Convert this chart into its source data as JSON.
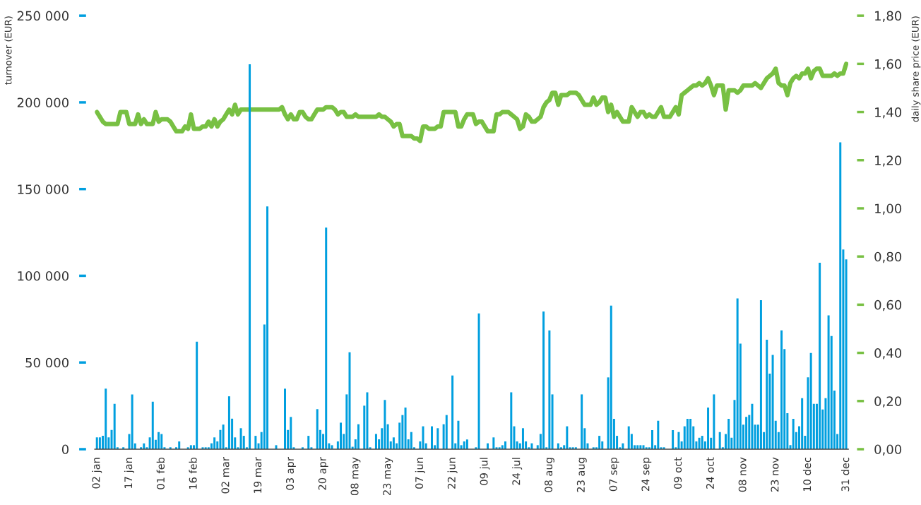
{
  "chart_data": {
    "type": "bar",
    "ylabel": "turnover (EUR)",
    "y2label": "daily share price (EUR)",
    "categories": [
      "02 jan",
      null,
      null,
      null,
      null,
      null,
      null,
      null,
      null,
      null,
      null,
      "17 jan",
      null,
      null,
      null,
      null,
      null,
      null,
      null,
      null,
      null,
      null,
      "01 feb",
      null,
      null,
      null,
      null,
      null,
      null,
      null,
      null,
      null,
      null,
      "16 feb",
      null,
      null,
      null,
      null,
      null,
      null,
      null,
      null,
      null,
      null,
      "02 mar",
      null,
      null,
      null,
      null,
      null,
      null,
      null,
      null,
      null,
      null,
      "19 mar",
      null,
      null,
      null,
      null,
      null,
      null,
      null,
      null,
      null,
      null,
      "03 apr",
      null,
      null,
      null,
      null,
      null,
      null,
      null,
      null,
      null,
      null,
      "20 apr",
      null,
      null,
      null,
      null,
      null,
      null,
      null,
      null,
      null,
      null,
      "08 may",
      null,
      null,
      null,
      null,
      null,
      null,
      null,
      null,
      null,
      null,
      "23 may",
      null,
      null,
      null,
      null,
      null,
      null,
      null,
      null,
      null,
      null,
      "07 jun",
      null,
      null,
      null,
      null,
      null,
      null,
      null,
      null,
      null,
      null,
      "22 jun",
      null,
      null,
      null,
      null,
      null,
      null,
      null,
      null,
      null,
      null,
      "09 jul",
      null,
      null,
      null,
      null,
      null,
      null,
      null,
      null,
      null,
      null,
      "24 jul",
      null,
      null,
      null,
      null,
      null,
      null,
      null,
      null,
      null,
      null,
      "08 aug",
      null,
      null,
      null,
      null,
      null,
      null,
      null,
      null,
      null,
      null,
      "23 aug",
      null,
      null,
      null,
      null,
      null,
      null,
      null,
      null,
      null,
      null,
      "07 sep",
      null,
      null,
      null,
      null,
      null,
      null,
      null,
      null,
      null,
      null,
      "24 sep",
      null,
      null,
      null,
      null,
      null,
      null,
      null,
      null,
      null,
      null,
      "09 oct",
      null,
      null,
      null,
      null,
      null,
      null,
      null,
      null,
      null,
      null,
      "24 oct",
      null,
      null,
      null,
      null,
      null,
      null,
      null,
      null,
      null,
      null,
      "08 nov",
      null,
      null,
      null,
      null,
      null,
      null,
      null,
      null,
      null,
      null,
      "23 nov",
      null,
      null,
      null,
      null,
      null,
      null,
      null,
      null,
      null,
      null,
      "10 dec",
      null,
      null,
      null,
      null,
      null,
      null,
      null,
      null,
      null,
      null,
      null,
      null,
      "31 dec"
    ],
    "series": [
      {
        "color": "#009fdf",
        "values": [
          6800,
          6800,
          7700,
          34900,
          6800,
          11100,
          26200,
          1100,
          0,
          1100,
          0,
          8800,
          31600,
          3400,
          0,
          1100,
          3400,
          1100,
          6800,
          27400,
          5400,
          9900,
          8800,
          1100,
          0,
          1100,
          0,
          1100,
          4500,
          0,
          0,
          1100,
          2300,
          2300,
          62000,
          0,
          1100,
          1100,
          1100,
          3400,
          6800,
          4500,
          11100,
          14200,
          1100,
          30500,
          17600,
          6800,
          1100,
          12100,
          7700,
          1100,
          222000,
          0,
          7700,
          3400,
          9900,
          71900,
          140000,
          0,
          0,
          2300,
          0,
          0,
          34900,
          11100,
          18600,
          1100,
          0,
          0,
          1100,
          0,
          7700,
          1100,
          0,
          23100,
          11100,
          8800,
          127800,
          3400,
          2300,
          0,
          4500,
          15300,
          8800,
          31600,
          55900,
          1400,
          5700,
          14400,
          0,
          25100,
          32800,
          1100,
          0,
          8800,
          5700,
          12100,
          28400,
          14400,
          4500,
          6800,
          3400,
          15300,
          19700,
          24000,
          5700,
          9900,
          1100,
          0,
          4500,
          13200,
          3400,
          0,
          13200,
          2300,
          12100,
          0,
          14400,
          19700,
          0,
          42500,
          3400,
          16400,
          2300,
          4500,
          5600,
          0,
          0,
          1100,
          78300,
          0,
          0,
          3400,
          0,
          6800,
          1100,
          1100,
          2300,
          4500,
          0,
          32800,
          13200,
          4500,
          3400,
          12100,
          4500,
          1100,
          3400,
          0,
          2300,
          8800,
          79400,
          1100,
          68500,
          31600,
          0,
          3400,
          1100,
          2300,
          13200,
          1100,
          1100,
          1100,
          0,
          31600,
          12100,
          3400,
          0,
          1100,
          1100,
          7700,
          4500,
          0,
          41400,
          82800,
          17500,
          7700,
          1100,
          3400,
          0,
          13200,
          8800,
          2300,
          2300,
          2300,
          2300,
          1100,
          1100,
          11000,
          2300,
          16400,
          1100,
          1100,
          0,
          0,
          11000,
          1100,
          9900,
          4500,
          13200,
          17500,
          17500,
          13200,
          4500,
          6600,
          7700,
          4500,
          24000,
          6600,
          31600,
          0,
          9900,
          1100,
          8800,
          17500,
          6600,
          28400,
          87000,
          60900,
          14200,
          18600,
          19700,
          26200,
          14200,
          14200,
          85900,
          9900,
          63100,
          43600,
          54400,
          16400,
          9900,
          68500,
          57700,
          20800,
          2300,
          17500,
          9900,
          13200,
          29400,
          7700,
          41400,
          55500,
          26200,
          26200,
          107500,
          22900,
          29400,
          77200,
          65300,
          33800,
          8800,
          177000,
          115200,
          109500
        ]
      },
      {
        "type": "line",
        "axis": "y2",
        "color": "#78c043",
        "values": [
          1.4,
          1.38,
          1.36,
          1.35,
          1.35,
          1.35,
          1.35,
          1.35,
          1.4,
          1.4,
          1.4,
          1.35,
          1.35,
          1.35,
          1.39,
          1.35,
          1.37,
          1.35,
          1.35,
          1.35,
          1.4,
          1.36,
          1.37,
          1.37,
          1.37,
          1.36,
          1.34,
          1.32,
          1.32,
          1.32,
          1.34,
          1.33,
          1.39,
          1.33,
          1.33,
          1.33,
          1.34,
          1.34,
          1.36,
          1.34,
          1.37,
          1.34,
          1.36,
          1.37,
          1.39,
          1.41,
          1.39,
          1.43,
          1.39,
          1.41,
          1.41,
          1.41,
          1.41,
          1.41,
          1.41,
          1.41,
          1.41,
          1.41,
          1.41,
          1.41,
          1.41,
          1.41,
          1.41,
          1.42,
          1.39,
          1.37,
          1.39,
          1.37,
          1.37,
          1.4,
          1.4,
          1.38,
          1.37,
          1.37,
          1.39,
          1.41,
          1.41,
          1.41,
          1.42,
          1.42,
          1.42,
          1.41,
          1.39,
          1.4,
          1.4,
          1.38,
          1.38,
          1.38,
          1.39,
          1.38,
          1.38,
          1.38,
          1.38,
          1.38,
          1.38,
          1.38,
          1.39,
          1.38,
          1.38,
          1.37,
          1.36,
          1.34,
          1.35,
          1.35,
          1.3,
          1.3,
          1.3,
          1.3,
          1.29,
          1.29,
          1.28,
          1.34,
          1.34,
          1.33,
          1.33,
          1.33,
          1.34,
          1.34,
          1.4,
          1.4,
          1.4,
          1.4,
          1.4,
          1.34,
          1.34,
          1.37,
          1.39,
          1.39,
          1.39,
          1.35,
          1.36,
          1.36,
          1.34,
          1.32,
          1.32,
          1.32,
          1.39,
          1.39,
          1.4,
          1.4,
          1.4,
          1.39,
          1.38,
          1.37,
          1.33,
          1.34,
          1.39,
          1.38,
          1.36,
          1.36,
          1.37,
          1.38,
          1.42,
          1.44,
          1.45,
          1.48,
          1.48,
          1.43,
          1.47,
          1.47,
          1.47,
          1.48,
          1.48,
          1.48,
          1.47,
          1.45,
          1.43,
          1.43,
          1.43,
          1.46,
          1.43,
          1.44,
          1.46,
          1.46,
          1.4,
          1.43,
          1.38,
          1.4,
          1.38,
          1.36,
          1.36,
          1.36,
          1.42,
          1.4,
          1.38,
          1.4,
          1.4,
          1.38,
          1.39,
          1.38,
          1.38,
          1.4,
          1.42,
          1.38,
          1.38,
          1.38,
          1.4,
          1.42,
          1.39,
          1.47,
          1.48,
          1.49,
          1.5,
          1.51,
          1.51,
          1.52,
          1.51,
          1.52,
          1.54,
          1.51,
          1.47,
          1.51,
          1.51,
          1.51,
          1.41,
          1.49,
          1.49,
          1.49,
          1.48,
          1.49,
          1.51,
          1.51,
          1.51,
          1.51,
          1.52,
          1.51,
          1.5,
          1.52,
          1.54,
          1.55,
          1.56,
          1.58,
          1.52,
          1.51,
          1.51,
          1.47,
          1.52,
          1.54,
          1.55,
          1.54,
          1.56,
          1.56,
          1.58,
          1.54,
          1.57,
          1.58,
          1.58,
          1.55,
          1.55,
          1.55,
          1.55,
          1.56,
          1.55,
          1.56,
          1.56,
          1.6
        ]
      }
    ],
    "ylim": [
      0,
      250000
    ],
    "yticks": [
      0,
      {
        "value": 50000,
        "label": "50 000"
      },
      {
        "value": 100000,
        "label": "100 000"
      },
      {
        "value": 150000,
        "label": "150 000"
      },
      {
        "value": 200000,
        "label": "200 000"
      },
      {
        "value": 250000,
        "label": "250 000"
      }
    ],
    "y2lim": [
      0,
      1.8
    ],
    "y2ticks": [
      {
        "value": 0,
        "label": "0,00"
      },
      {
        "value": 0.2,
        "label": "0,20"
      },
      {
        "value": 0.4,
        "label": "0,40"
      },
      {
        "value": 0.6,
        "label": "0,60"
      },
      {
        "value": 0.8,
        "label": "0,80"
      },
      {
        "value": 1.0,
        "label": "1,00"
      },
      {
        "value": 1.2,
        "label": "1,20"
      },
      {
        "value": 1.4,
        "label": "1,40"
      },
      {
        "value": 1.6,
        "label": "1,60"
      },
      {
        "value": 1.8,
        "label": "1,80"
      }
    ]
  }
}
